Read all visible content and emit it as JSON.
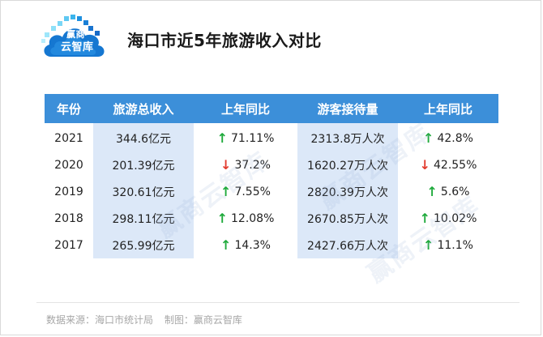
{
  "brand": {
    "logo_small": "赢商",
    "logo_main": "云智库",
    "colors": {
      "accent": "#3c8fd9",
      "shade": "#dce8f8",
      "up": "#1faa3c",
      "down": "#e23b2e"
    }
  },
  "title": "海口市近5年旅游收入对比",
  "table": {
    "headers": [
      "年份",
      "旅游总收入",
      "上年同比",
      "游客接待量",
      "上年同比"
    ],
    "rows": [
      {
        "year": "2021",
        "revenue": "344.6亿元",
        "revenue_dir": "up",
        "revenue_yoy": "71.11%",
        "visitors": "2313.8万人次",
        "visitors_dir": "up",
        "visitors_yoy": "42.8%"
      },
      {
        "year": "2020",
        "revenue": "201.39亿元",
        "revenue_dir": "down",
        "revenue_yoy": "37.2%",
        "visitors": "1620.27万人次",
        "visitors_dir": "down",
        "visitors_yoy": "42.55%"
      },
      {
        "year": "2019",
        "revenue": "320.61亿元",
        "revenue_dir": "up",
        "revenue_yoy": "7.55%",
        "visitors": "2820.39万人次",
        "visitors_dir": "up",
        "visitors_yoy": "5.6%"
      },
      {
        "year": "2018",
        "revenue": "298.11亿元",
        "revenue_dir": "up",
        "revenue_yoy": "12.08%",
        "visitors": "2670.85万人次",
        "visitors_dir": "up",
        "visitors_yoy": "10.02%"
      },
      {
        "year": "2017",
        "revenue": "265.99亿元",
        "revenue_dir": "up",
        "revenue_yoy": "14.3%",
        "visitors": "2427.66万人次",
        "visitors_dir": "up",
        "visitors_yoy": "11.1%"
      }
    ]
  },
  "footer": {
    "source": "数据来源：海口市统计局",
    "made_by": "制图：赢商云智库"
  },
  "watermarks": [
    "赢商云智库",
    "赢商云智库",
    "赢商云智库"
  ]
}
